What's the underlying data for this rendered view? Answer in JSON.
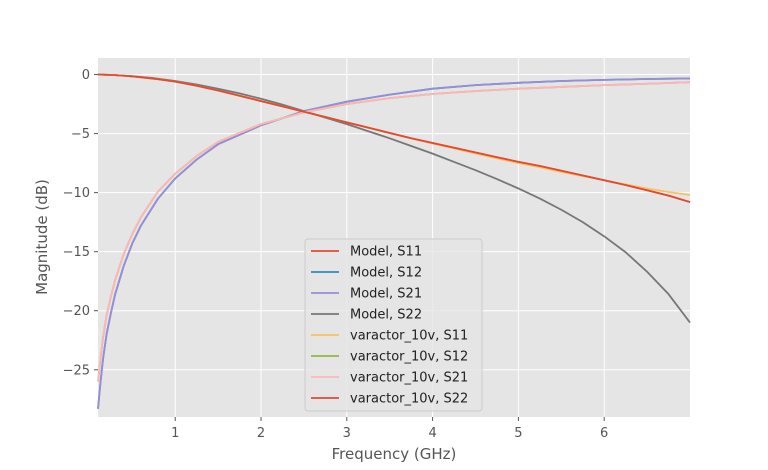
{
  "chart_data": {
    "type": "line",
    "title": "",
    "xlabel": "Frequency (GHz)",
    "ylabel": "Magnitude (dB)",
    "xlim": [
      0.1,
      7.0
    ],
    "ylim": [
      -29.0,
      1.4
    ],
    "xticks": [
      1,
      2,
      3,
      4,
      5,
      6
    ],
    "yticks": [
      0,
      -5,
      -10,
      -15,
      -20,
      -25
    ],
    "xtick_labels": [
      "1",
      "2",
      "3",
      "4",
      "5",
      "6"
    ],
    "ytick_labels": [
      "0",
      "−5",
      "−10",
      "−15",
      "−20",
      "−25"
    ],
    "grid": true,
    "legend_position": "lower-center",
    "series": [
      {
        "name": "Model, S11",
        "color": "#E24A33",
        "x": [
          0.1,
          0.3,
          0.5,
          0.75,
          1.0,
          1.25,
          1.5,
          1.75,
          2.0,
          2.25,
          2.5,
          2.75,
          3.0,
          3.25,
          3.5,
          3.75,
          4.0,
          4.25,
          4.5,
          4.75,
          5.0,
          5.25,
          5.5,
          5.75,
          6.0,
          6.25,
          6.5,
          6.75,
          7.0
        ],
        "y": [
          0.0,
          -0.05,
          -0.15,
          -0.35,
          -0.6,
          -0.95,
          -1.35,
          -1.8,
          -2.25,
          -2.7,
          -3.15,
          -3.6,
          -4.05,
          -4.5,
          -4.95,
          -5.4,
          -5.8,
          -6.2,
          -6.6,
          -7.0,
          -7.4,
          -7.75,
          -8.15,
          -8.55,
          -8.95,
          -9.35,
          -9.8,
          -10.25,
          -10.8
        ]
      },
      {
        "name": "Model, S12",
        "color": "#348ABD",
        "x": [
          0.1,
          0.13,
          0.16,
          0.2,
          0.25,
          0.3,
          0.4,
          0.5,
          0.6,
          0.8,
          1.0,
          1.25,
          1.5,
          2.0,
          2.5,
          3.0,
          3.5,
          4.0,
          4.5,
          5.0,
          5.5,
          6.0,
          6.5,
          7.0
        ],
        "y": [
          -28.3,
          -26.0,
          -24.0,
          -22.0,
          -20.2,
          -18.6,
          -16.2,
          -14.3,
          -12.8,
          -10.5,
          -8.8,
          -7.2,
          -5.9,
          -4.3,
          -3.1,
          -2.3,
          -1.7,
          -1.2,
          -0.9,
          -0.7,
          -0.55,
          -0.45,
          -0.38,
          -0.33
        ]
      },
      {
        "name": "Model, S21",
        "color": "#988ED5",
        "x": [
          0.1,
          0.13,
          0.16,
          0.2,
          0.25,
          0.3,
          0.4,
          0.5,
          0.6,
          0.8,
          1.0,
          1.25,
          1.5,
          2.0,
          2.5,
          3.0,
          3.5,
          4.0,
          4.5,
          5.0,
          5.5,
          6.0,
          6.5,
          7.0
        ],
        "y": [
          -28.3,
          -26.0,
          -24.0,
          -22.0,
          -20.2,
          -18.6,
          -16.2,
          -14.3,
          -12.8,
          -10.5,
          -8.8,
          -7.2,
          -5.9,
          -4.3,
          -3.1,
          -2.3,
          -1.7,
          -1.2,
          -0.9,
          -0.7,
          -0.55,
          -0.45,
          -0.38,
          -0.33
        ]
      },
      {
        "name": "Model, S22",
        "color": "#777777",
        "x": [
          0.1,
          0.3,
          0.5,
          0.75,
          1.0,
          1.25,
          1.5,
          1.75,
          2.0,
          2.25,
          2.5,
          2.75,
          3.0,
          3.25,
          3.5,
          3.75,
          4.0,
          4.25,
          4.5,
          4.75,
          5.0,
          5.25,
          5.5,
          5.75,
          6.0,
          6.25,
          6.5,
          6.75,
          7.0
        ],
        "y": [
          0.0,
          -0.05,
          -0.15,
          -0.3,
          -0.55,
          -0.85,
          -1.2,
          -1.6,
          -2.05,
          -2.55,
          -3.1,
          -3.65,
          -4.2,
          -4.8,
          -5.4,
          -6.05,
          -6.7,
          -7.4,
          -8.1,
          -8.85,
          -9.65,
          -10.5,
          -11.45,
          -12.5,
          -13.7,
          -15.05,
          -16.7,
          -18.6,
          -21.0
        ]
      },
      {
        "name": "varactor_10v, S11",
        "color": "#FBC15E",
        "x": [
          0.1,
          0.3,
          0.5,
          0.75,
          1.0,
          1.25,
          1.5,
          1.75,
          2.0,
          2.25,
          2.5,
          2.75,
          3.0,
          3.25,
          3.5,
          3.75,
          4.0,
          4.25,
          4.5,
          4.75,
          5.0,
          5.25,
          5.5,
          5.75,
          6.0,
          6.25,
          6.5,
          6.75,
          7.0
        ],
        "y": [
          0.0,
          -0.05,
          -0.15,
          -0.35,
          -0.6,
          -0.95,
          -1.35,
          -1.8,
          -2.25,
          -2.7,
          -3.15,
          -3.6,
          -4.05,
          -4.5,
          -4.95,
          -5.4,
          -5.85,
          -6.25,
          -6.7,
          -7.1,
          -7.5,
          -7.85,
          -8.25,
          -8.6,
          -8.95,
          -9.3,
          -9.65,
          -9.95,
          -10.2
        ]
      },
      {
        "name": "varactor_10v, S12",
        "color": "#8EBA42",
        "x": [
          0.1,
          0.13,
          0.16,
          0.2,
          0.25,
          0.3,
          0.4,
          0.5,
          0.6,
          0.8,
          1.0,
          1.25,
          1.5,
          2.0,
          2.5,
          3.0,
          3.5,
          4.0,
          4.5,
          5.0,
          5.5,
          6.0,
          6.5,
          7.0
        ],
        "y": [
          -26.0,
          -24.0,
          -22.2,
          -20.4,
          -18.8,
          -17.4,
          -15.2,
          -13.5,
          -12.1,
          -9.9,
          -8.4,
          -6.9,
          -5.7,
          -4.2,
          -3.2,
          -2.5,
          -2.0,
          -1.65,
          -1.4,
          -1.2,
          -1.05,
          -0.9,
          -0.78,
          -0.65
        ]
      },
      {
        "name": "varactor_10v, S21",
        "color": "#FFB5B8",
        "x": [
          0.1,
          0.13,
          0.16,
          0.2,
          0.25,
          0.3,
          0.4,
          0.5,
          0.6,
          0.8,
          1.0,
          1.25,
          1.5,
          2.0,
          2.5,
          3.0,
          3.5,
          4.0,
          4.5,
          5.0,
          5.5,
          6.0,
          6.5,
          7.0
        ],
        "y": [
          -26.0,
          -24.0,
          -22.2,
          -20.4,
          -18.8,
          -17.4,
          -15.2,
          -13.5,
          -12.1,
          -9.9,
          -8.4,
          -6.9,
          -5.7,
          -4.2,
          -3.2,
          -2.5,
          -2.0,
          -1.65,
          -1.4,
          -1.2,
          -1.05,
          -0.9,
          -0.78,
          -0.65
        ]
      },
      {
        "name": "varactor_10v, S22",
        "color": "#E24A33",
        "x": [
          0.1,
          0.3,
          0.5,
          0.75,
          1.0,
          1.25,
          1.5,
          1.75,
          2.0,
          2.25,
          2.5,
          2.75,
          3.0,
          3.25,
          3.5,
          3.75,
          4.0,
          4.25,
          4.5,
          4.75,
          5.0,
          5.25,
          5.5,
          5.75,
          6.0,
          6.25,
          6.5,
          6.75,
          7.0
        ],
        "y": [
          0.0,
          -0.05,
          -0.15,
          -0.35,
          -0.6,
          -0.95,
          -1.35,
          -1.8,
          -2.25,
          -2.7,
          -3.15,
          -3.6,
          -4.05,
          -4.5,
          -4.95,
          -5.4,
          -5.8,
          -6.2,
          -6.6,
          -7.0,
          -7.4,
          -7.75,
          -8.15,
          -8.55,
          -8.95,
          -9.35,
          -9.8,
          -10.25,
          -10.8
        ]
      }
    ]
  }
}
